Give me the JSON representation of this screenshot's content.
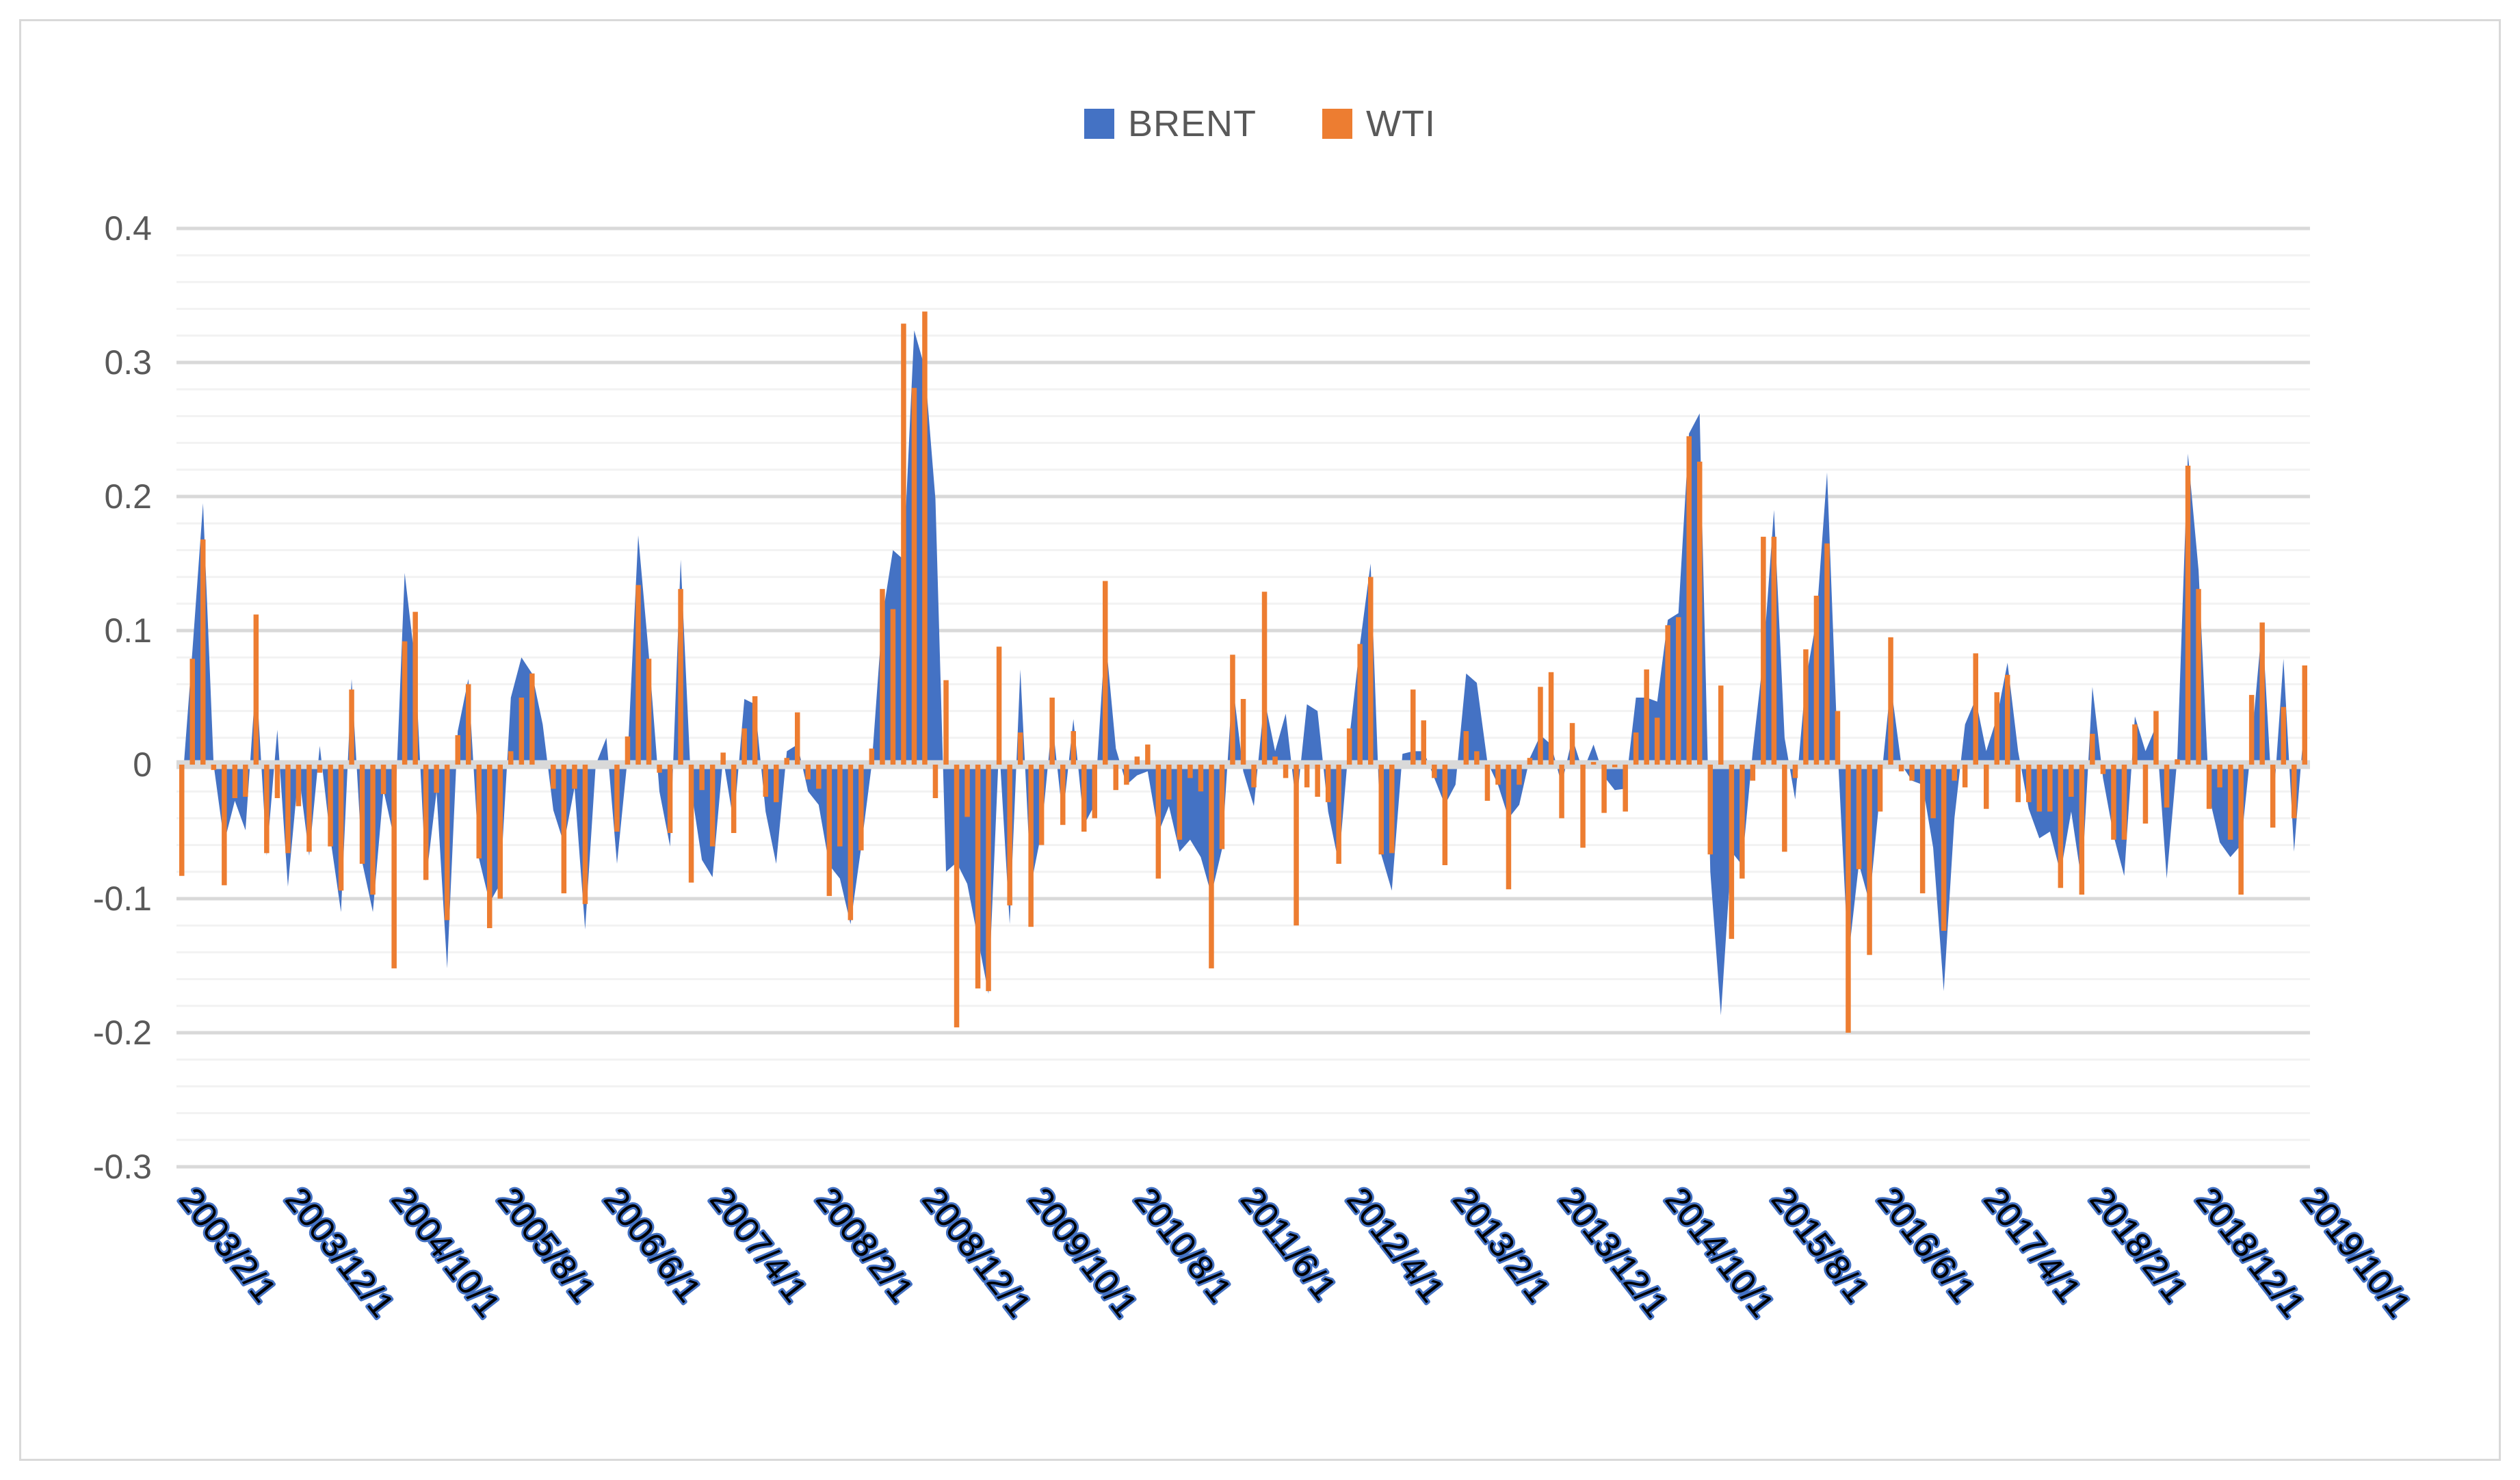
{
  "chart_data": {
    "type": "combo",
    "title": "",
    "legend_position": "top-center",
    "x_start": "2003/2/1",
    "x_end": "2019/10/1",
    "x_tick_interval_months": 10,
    "x_tick_labels": [
      "2003/2/1",
      "2003/12/1",
      "2004/10/1",
      "2005/8/1",
      "2006/6/1",
      "2007/4/1",
      "2008/2/1",
      "2008/12/1",
      "2009/10/1",
      "2010/8/1",
      "2011/6/1",
      "2012/4/1",
      "2013/2/1",
      "2013/12/1",
      "2014/10/1",
      "2015/8/1",
      "2016/6/1",
      "2017/4/1",
      "2018/2/1",
      "2018/12/1",
      "2019/10/1"
    ],
    "y_ticks": [
      0.4,
      0.3,
      0.2,
      0.1,
      0,
      -0.1,
      -0.2,
      -0.3
    ],
    "y_tick_labels": [
      "0.4",
      "0.3",
      "0.2",
      "0.1",
      "0",
      "-0.1",
      "-0.2",
      "-0.3"
    ],
    "ylim": [
      -0.3,
      0.4
    ],
    "grid": {
      "major_step": 0.1,
      "minor_step": 0.02
    },
    "series": [
      {
        "name": "BRENT",
        "kind": "area",
        "color": "#4472C4",
        "values": [
          -0.02,
          0.085,
          0.195,
          0.0,
          -0.058,
          -0.027,
          -0.049,
          0.066,
          -0.068,
          0.026,
          -0.091,
          -0.005,
          -0.068,
          0.014,
          -0.055,
          -0.11,
          0.064,
          -0.073,
          -0.11,
          -0.019,
          -0.055,
          0.143,
          0.075,
          -0.087,
          -0.02,
          -0.152,
          0.025,
          0.064,
          -0.07,
          -0.103,
          -0.089,
          0.05,
          0.08,
          0.068,
          0.03,
          -0.034,
          -0.059,
          -0.017,
          -0.123,
          0.0,
          0.02,
          -0.074,
          0.005,
          0.171,
          0.082,
          -0.02,
          -0.061,
          0.153,
          -0.019,
          -0.071,
          -0.084,
          0.005,
          -0.044,
          0.049,
          0.045,
          -0.035,
          -0.074,
          0.01,
          0.015,
          -0.02,
          -0.03,
          -0.075,
          -0.085,
          -0.119,
          -0.062,
          0.0,
          0.11,
          0.16,
          0.153,
          0.324,
          0.296,
          0.198,
          -0.08,
          -0.073,
          -0.089,
          -0.13,
          -0.171,
          0.015,
          -0.119,
          0.071,
          -0.09,
          -0.05,
          0.033,
          -0.04,
          0.034,
          -0.045,
          -0.03,
          0.097,
          0.012,
          -0.015,
          -0.008,
          -0.005,
          -0.051,
          -0.031,
          -0.065,
          -0.056,
          -0.069,
          -0.097,
          -0.063,
          0.061,
          -0.005,
          -0.031,
          0.049,
          0.01,
          0.038,
          -0.031,
          0.045,
          0.04,
          -0.035,
          -0.074,
          0.02,
          0.09,
          0.15,
          -0.067,
          -0.094,
          0.008,
          0.01,
          0.01,
          -0.01,
          -0.03,
          -0.015,
          0.068,
          0.061,
          0.002,
          -0.015,
          -0.04,
          -0.03,
          0.005,
          0.022,
          0.015,
          -0.015,
          0.02,
          -0.005,
          0.015,
          -0.009,
          -0.019,
          -0.018,
          0.05,
          0.05,
          0.047,
          0.108,
          0.113,
          0.247,
          0.262,
          -0.08,
          -0.187,
          -0.065,
          -0.075,
          0.01,
          0.081,
          0.19,
          0.02,
          -0.026,
          0.063,
          0.108,
          0.218,
          0.01,
          -0.145,
          -0.074,
          -0.103,
          -0.02,
          0.06,
          0.0,
          -0.012,
          -0.015,
          -0.062,
          -0.169,
          -0.04,
          0.03,
          0.049,
          0.01,
          0.035,
          0.076,
          0.01,
          -0.033,
          -0.055,
          -0.05,
          -0.081,
          -0.035,
          -0.088,
          0.058,
          -0.01,
          -0.053,
          -0.083,
          0.036,
          0.01,
          0.029,
          -0.085,
          0.005,
          0.232,
          0.145,
          -0.024,
          -0.058,
          -0.069,
          -0.06,
          0.017,
          0.106,
          -0.035,
          0.079,
          -0.065,
          0.035
        ]
      },
      {
        "name": "WTI",
        "kind": "bar",
        "color": "#ED7D31",
        "values": [
          -0.083,
          0.079,
          0.168,
          -0.004,
          -0.09,
          -0.025,
          -0.024,
          0.112,
          -0.066,
          -0.025,
          -0.066,
          -0.031,
          -0.065,
          -0.006,
          -0.061,
          -0.094,
          0.056,
          -0.074,
          -0.097,
          -0.022,
          -0.152,
          0.092,
          0.114,
          -0.086,
          -0.021,
          -0.116,
          0.022,
          0.06,
          -0.07,
          -0.122,
          -0.1,
          0.01,
          0.05,
          0.068,
          0.0,
          -0.018,
          -0.096,
          -0.018,
          -0.104,
          0.0,
          0.0,
          -0.05,
          0.021,
          0.134,
          0.079,
          -0.006,
          -0.051,
          0.131,
          -0.088,
          -0.019,
          -0.061,
          0.009,
          -0.051,
          0.027,
          0.051,
          -0.024,
          -0.028,
          0.005,
          0.039,
          -0.011,
          -0.018,
          -0.098,
          -0.061,
          -0.116,
          -0.064,
          0.012,
          0.131,
          0.116,
          0.329,
          0.281,
          0.338,
          -0.025,
          0.063,
          -0.196,
          -0.039,
          -0.167,
          -0.169,
          0.088,
          -0.105,
          0.024,
          -0.121,
          -0.06,
          0.05,
          -0.045,
          0.025,
          -0.05,
          -0.04,
          0.137,
          -0.019,
          -0.015,
          0.006,
          0.015,
          -0.085,
          -0.026,
          -0.056,
          -0.01,
          -0.02,
          -0.152,
          -0.063,
          0.082,
          0.049,
          -0.017,
          0.129,
          0.006,
          -0.01,
          -0.12,
          -0.017,
          -0.024,
          -0.028,
          -0.074,
          0.027,
          0.09,
          0.14,
          -0.067,
          -0.066,
          0.0,
          0.056,
          0.033,
          -0.01,
          -0.075,
          0.0,
          0.025,
          0.01,
          -0.027,
          -0.015,
          -0.093,
          -0.015,
          0.005,
          0.058,
          0.069,
          -0.04,
          0.031,
          -0.062,
          0.002,
          -0.036,
          -0.002,
          -0.035,
          0.024,
          0.071,
          0.035,
          0.104,
          0.11,
          0.245,
          0.226,
          -0.067,
          0.059,
          -0.13,
          -0.085,
          -0.012,
          0.17,
          0.17,
          -0.065,
          -0.01,
          0.086,
          0.126,
          0.165,
          0.04,
          -0.2,
          -0.078,
          -0.142,
          -0.035,
          0.095,
          -0.005,
          -0.012,
          -0.096,
          -0.04,
          -0.124,
          -0.012,
          -0.017,
          0.083,
          -0.033,
          0.054,
          0.067,
          -0.028,
          -0.028,
          -0.035,
          -0.035,
          -0.092,
          -0.024,
          -0.097,
          0.023,
          -0.007,
          -0.056,
          -0.056,
          0.03,
          -0.044,
          0.04,
          -0.032,
          0.004,
          0.223,
          0.131,
          -0.033,
          -0.017,
          -0.056,
          -0.097,
          0.052,
          0.106,
          -0.047,
          0.043,
          -0.04,
          0.074
        ]
      }
    ],
    "colors": {
      "axis_text": "#595959",
      "x_label_fill": "#000000",
      "x_label_outline": "#4472C4",
      "grid_major": "#D9D9D9",
      "grid_minor": "#F2F2F2",
      "zero_axis": "#D9D9D9",
      "frame_border": "#D9D9D9"
    }
  }
}
